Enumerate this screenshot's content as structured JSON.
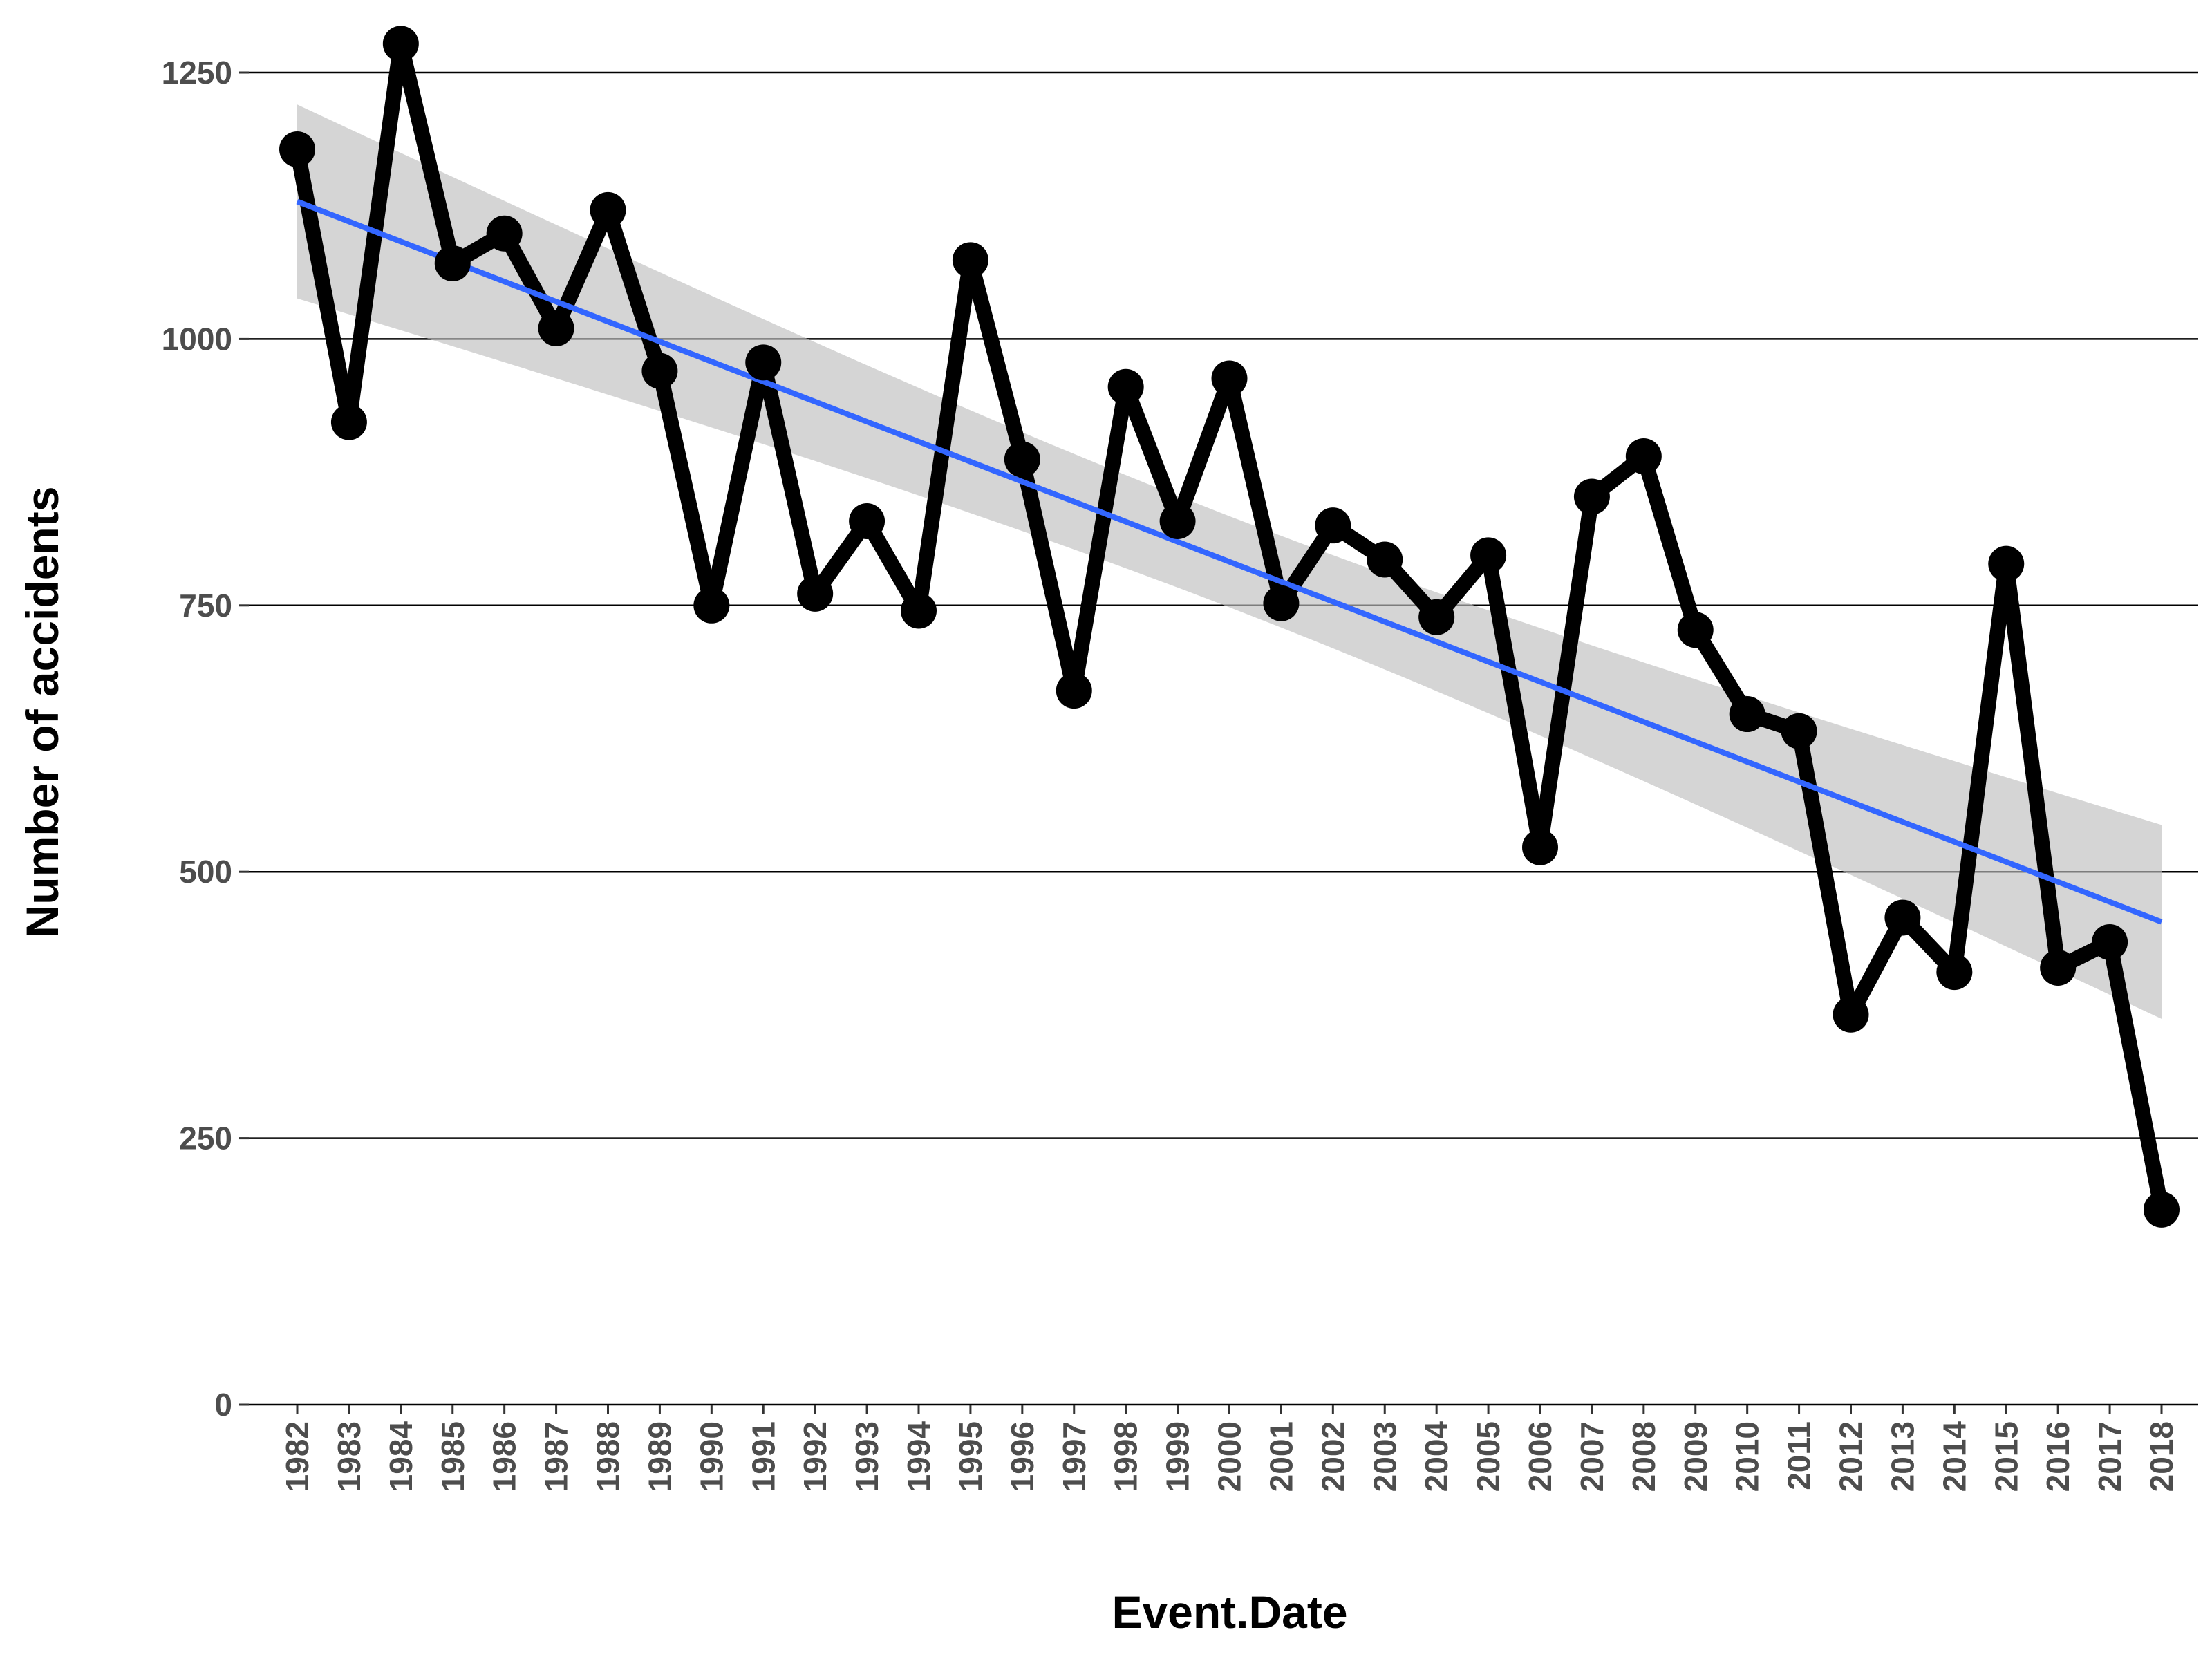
{
  "chart_data": {
    "type": "line",
    "title": "",
    "xlabel": "Event.Date",
    "ylabel": "Number of accidents",
    "categories": [
      "1982",
      "1983",
      "1984",
      "1985",
      "1986",
      "1987",
      "1988",
      "1989",
      "1990",
      "1991",
      "1992",
      "1993",
      "1994",
      "1995",
      "1996",
      "1997",
      "1998",
      "1999",
      "2000",
      "2001",
      "2002",
      "2003",
      "2004",
      "2005",
      "2006",
      "2007",
      "2008",
      "2009",
      "2010",
      "2011",
      "2012",
      "2013",
      "2014",
      "2015",
      "2016",
      "2017",
      "2018"
    ],
    "values": [
      1178,
      922,
      1277,
      1071,
      1099,
      1010,
      1121,
      970,
      750,
      978,
      761,
      829,
      745,
      1074,
      887,
      670,
      955,
      829,
      963,
      752,
      825,
      793,
      739,
      797,
      523,
      852,
      890,
      727,
      648,
      632,
      366,
      457,
      406,
      789,
      410,
      434,
      183
    ],
    "trend": {
      "type": "linear",
      "start": 1129,
      "end": 453,
      "band_lower": [
        1038,
        362
      ],
      "band_upper": [
        1224,
        548
      ]
    },
    "ylim": [
      0,
      1300
    ],
    "yticks": [
      0,
      250,
      500,
      750,
      1000,
      1250
    ],
    "grid": true,
    "legend": "none",
    "colors": {
      "line": "#000000",
      "trend": "#3366FF",
      "band": "#bfbfbf",
      "grid": "#000000",
      "tick_text": "#4d4d4d"
    }
  }
}
